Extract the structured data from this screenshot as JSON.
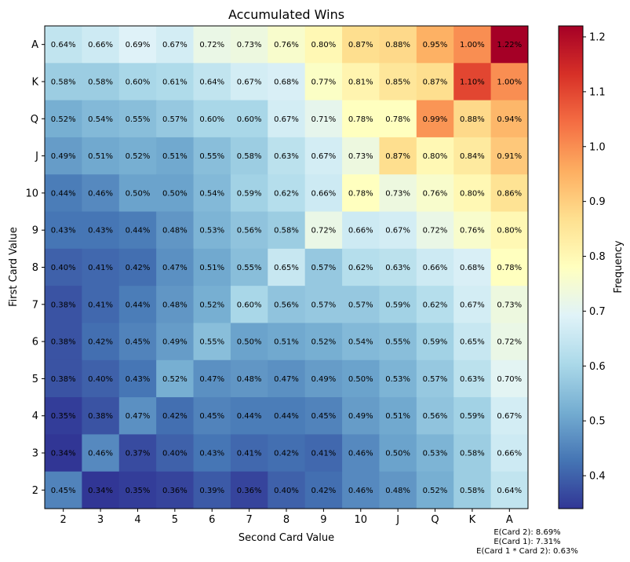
{
  "chart_data": {
    "type": "heatmap",
    "title": "Accumulated Wins",
    "xlabel": "Second Card Value",
    "ylabel": "First Card Value",
    "colorbar_label": "Frequency",
    "x_categories": [
      "2",
      "3",
      "4",
      "5",
      "6",
      "7",
      "8",
      "9",
      "10",
      "J",
      "Q",
      "K",
      "A"
    ],
    "y_categories": [
      "A",
      "K",
      "Q",
      "J",
      "10",
      "9",
      "8",
      "7",
      "6",
      "5",
      "4",
      "3",
      "2"
    ],
    "values": [
      [
        0.64,
        0.66,
        0.69,
        0.67,
        0.72,
        0.73,
        0.76,
        0.8,
        0.87,
        0.88,
        0.95,
        1.0,
        1.22
      ],
      [
        0.58,
        0.58,
        0.6,
        0.61,
        0.64,
        0.67,
        0.68,
        0.77,
        0.81,
        0.85,
        0.87,
        1.1,
        1.0
      ],
      [
        0.52,
        0.54,
        0.55,
        0.57,
        0.6,
        0.6,
        0.67,
        0.71,
        0.78,
        0.78,
        0.99,
        0.88,
        0.94
      ],
      [
        0.49,
        0.51,
        0.52,
        0.51,
        0.55,
        0.58,
        0.63,
        0.67,
        0.73,
        0.87,
        0.8,
        0.84,
        0.91
      ],
      [
        0.44,
        0.46,
        0.5,
        0.5,
        0.54,
        0.59,
        0.62,
        0.66,
        0.78,
        0.73,
        0.76,
        0.8,
        0.86
      ],
      [
        0.43,
        0.43,
        0.44,
        0.48,
        0.53,
        0.56,
        0.58,
        0.72,
        0.66,
        0.67,
        0.72,
        0.76,
        0.8
      ],
      [
        0.4,
        0.41,
        0.42,
        0.47,
        0.51,
        0.55,
        0.65,
        0.57,
        0.62,
        0.63,
        0.66,
        0.68,
        0.78
      ],
      [
        0.38,
        0.41,
        0.44,
        0.48,
        0.52,
        0.6,
        0.56,
        0.57,
        0.57,
        0.59,
        0.62,
        0.67,
        0.73
      ],
      [
        0.38,
        0.42,
        0.45,
        0.49,
        0.55,
        0.5,
        0.51,
        0.52,
        0.54,
        0.55,
        0.59,
        0.65,
        0.72
      ],
      [
        0.38,
        0.4,
        0.43,
        0.52,
        0.47,
        0.48,
        0.47,
        0.49,
        0.5,
        0.53,
        0.57,
        0.63,
        0.7
      ],
      [
        0.35,
        0.38,
        0.47,
        0.42,
        0.45,
        0.44,
        0.44,
        0.45,
        0.49,
        0.51,
        0.56,
        0.59,
        0.67
      ],
      [
        0.34,
        0.46,
        0.37,
        0.4,
        0.43,
        0.41,
        0.42,
        0.41,
        0.46,
        0.5,
        0.53,
        0.58,
        0.66
      ],
      [
        0.45,
        0.34,
        0.35,
        0.36,
        0.39,
        0.36,
        0.4,
        0.42,
        0.46,
        0.48,
        0.52,
        0.58,
        0.64
      ]
    ],
    "value_suffix": "%",
    "colormap": "RdYlBu_r",
    "vmin": 0.34,
    "vmax": 1.22,
    "colorbar_ticks": [
      0.4,
      0.5,
      0.6,
      0.7,
      0.8,
      0.9,
      1.0,
      1.1,
      1.2
    ],
    "colorbar_tick_labels": [
      "0.4",
      "0.5",
      "0.6",
      "0.7",
      "0.8",
      "0.9",
      "1.0",
      "1.1",
      "1.2"
    ],
    "annotations": [
      "E(Card 2): 8.69%",
      "E(Card 1): 7.31%",
      "E(Card 1 * Card 2): 0.63%"
    ]
  }
}
